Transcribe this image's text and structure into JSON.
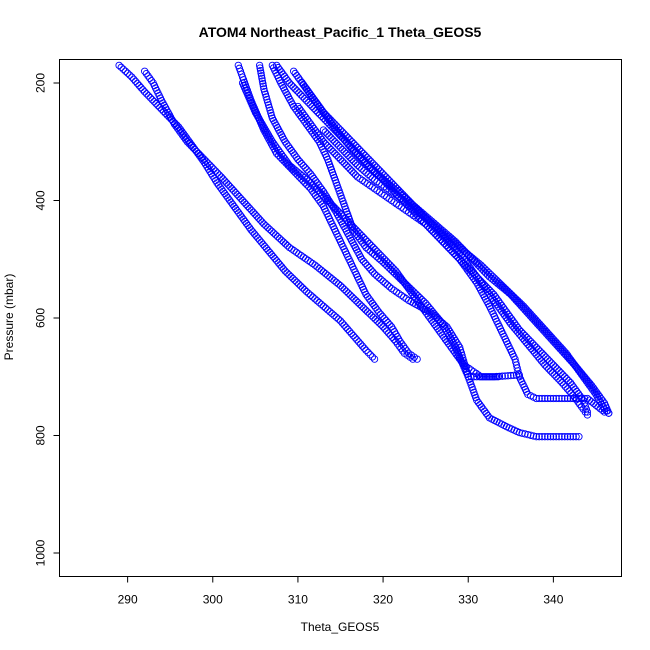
{
  "chart_data": {
    "type": "scatter",
    "title": "ATOM4 Northeast_Pacific_1 Theta_GEOS5",
    "xlabel": "Theta_GEOS5",
    "ylabel": "Pressure (mbar)",
    "xlim": [
      282,
      348
    ],
    "ylim": [
      1040,
      160
    ],
    "y_reversed": true,
    "grid": false,
    "legend": "none",
    "x_ticks": [
      290,
      300,
      310,
      320,
      330,
      340
    ],
    "y_ticks": [
      200,
      400,
      600,
      800,
      1000
    ],
    "marker": "open-circle",
    "color": "#0000ff",
    "series": [
      {
        "points": [
          [
            289.0,
            170
          ],
          [
            290.5,
            190
          ],
          [
            292.0,
            215
          ],
          [
            294.0,
            245
          ],
          [
            296.0,
            275
          ],
          [
            297.5,
            305
          ],
          [
            299.0,
            335
          ],
          [
            300.5,
            370
          ],
          [
            302.5,
            410
          ],
          [
            304.5,
            450
          ],
          [
            306.5,
            485
          ],
          [
            308.5,
            520
          ],
          [
            311.0,
            555
          ],
          [
            313.0,
            580
          ],
          [
            315.0,
            605
          ],
          [
            316.5,
            630
          ],
          [
            318.0,
            655
          ],
          [
            319.0,
            670
          ]
        ]
      },
      {
        "points": [
          [
            292.0,
            180
          ],
          [
            293.0,
            200
          ],
          [
            294.0,
            230
          ],
          [
            295.5,
            270
          ],
          [
            297.0,
            300
          ],
          [
            299.0,
            330
          ],
          [
            301.0,
            360
          ],
          [
            303.5,
            400
          ],
          [
            306.0,
            440
          ],
          [
            309.0,
            480
          ],
          [
            312.0,
            510
          ],
          [
            315.0,
            545
          ],
          [
            317.5,
            580
          ],
          [
            320.0,
            615
          ],
          [
            321.5,
            640
          ],
          [
            322.5,
            660
          ],
          [
            323.5,
            670
          ]
        ]
      },
      {
        "points": [
          [
            303.0,
            170
          ],
          [
            303.5,
            190
          ],
          [
            304.5,
            230
          ],
          [
            306.0,
            280
          ],
          [
            307.5,
            320
          ],
          [
            309.5,
            350
          ],
          [
            311.5,
            380
          ],
          [
            313.0,
            410
          ],
          [
            314.0,
            440
          ],
          [
            315.0,
            470
          ],
          [
            316.0,
            500
          ],
          [
            317.0,
            530
          ],
          [
            318.0,
            560
          ],
          [
            319.5,
            590
          ],
          [
            321.0,
            615
          ],
          [
            322.0,
            640
          ],
          [
            323.0,
            660
          ],
          [
            324.0,
            670
          ]
        ]
      },
      {
        "points": [
          [
            305.5,
            170
          ],
          [
            306.0,
            210
          ],
          [
            307.0,
            260
          ],
          [
            308.5,
            300
          ],
          [
            310.0,
            330
          ],
          [
            311.5,
            355
          ],
          [
            313.0,
            385
          ],
          [
            314.5,
            420
          ],
          [
            316.0,
            460
          ],
          [
            317.5,
            500
          ],
          [
            319.0,
            525
          ],
          [
            321.0,
            550
          ],
          [
            323.0,
            570
          ],
          [
            325.5,
            590
          ],
          [
            327.5,
            615
          ],
          [
            329.0,
            650
          ],
          [
            330.0,
            700
          ],
          [
            333.0,
            700
          ],
          [
            336.0,
            697
          ]
        ]
      },
      {
        "points": [
          [
            307.0,
            170
          ],
          [
            308.0,
            200
          ],
          [
            309.5,
            240
          ],
          [
            311.0,
            270
          ],
          [
            312.5,
            300
          ],
          [
            313.5,
            330
          ],
          [
            314.5,
            370
          ],
          [
            315.5,
            410
          ],
          [
            316.5,
            450
          ],
          [
            318.0,
            480
          ],
          [
            320.0,
            505
          ],
          [
            322.5,
            540
          ],
          [
            325.0,
            575
          ],
          [
            327.0,
            610
          ],
          [
            328.5,
            650
          ],
          [
            330.0,
            700
          ],
          [
            331.0,
            740
          ],
          [
            332.5,
            770
          ],
          [
            334.5,
            785
          ],
          [
            336.0,
            795
          ],
          [
            338.0,
            802
          ],
          [
            341.0,
            802
          ],
          [
            343.0,
            802
          ]
        ]
      },
      {
        "points": [
          [
            307.5,
            170
          ],
          [
            309.0,
            200
          ],
          [
            311.0,
            230
          ],
          [
            313.0,
            260
          ],
          [
            315.0,
            290
          ],
          [
            317.0,
            320
          ],
          [
            319.0,
            350
          ],
          [
            321.0,
            380
          ],
          [
            323.0,
            410
          ],
          [
            325.0,
            440
          ],
          [
            327.0,
            470
          ],
          [
            329.0,
            500
          ],
          [
            331.0,
            540
          ],
          [
            332.5,
            580
          ],
          [
            333.5,
            610
          ],
          [
            334.5,
            640
          ],
          [
            335.5,
            670
          ],
          [
            336.0,
            700
          ],
          [
            337.0,
            730
          ],
          [
            338.0,
            737
          ],
          [
            340.0,
            737
          ],
          [
            342.0,
            737
          ],
          [
            344.0,
            737
          ],
          [
            346.0,
            760
          ]
        ]
      },
      {
        "points": [
          [
            309.5,
            180
          ],
          [
            311.0,
            210
          ],
          [
            313.0,
            250
          ],
          [
            315.0,
            280
          ],
          [
            317.0,
            310
          ],
          [
            319.0,
            340
          ],
          [
            321.0,
            370
          ],
          [
            323.0,
            400
          ],
          [
            325.0,
            430
          ],
          [
            327.0,
            460
          ],
          [
            329.0,
            490
          ],
          [
            331.0,
            530
          ],
          [
            333.0,
            570
          ],
          [
            335.0,
            610
          ],
          [
            337.0,
            645
          ],
          [
            339.0,
            680
          ],
          [
            341.0,
            710
          ],
          [
            342.5,
            735
          ],
          [
            343.5,
            755
          ],
          [
            344.0,
            765
          ]
        ]
      },
      {
        "points": [
          [
            310.0,
            240
          ],
          [
            311.5,
            270
          ],
          [
            313.0,
            300
          ],
          [
            315.0,
            330
          ],
          [
            317.0,
            360
          ],
          [
            319.0,
            380
          ],
          [
            321.0,
            400
          ],
          [
            323.0,
            420
          ],
          [
            325.0,
            440
          ],
          [
            327.0,
            470
          ],
          [
            329.0,
            500
          ],
          [
            331.0,
            530
          ],
          [
            333.0,
            560
          ],
          [
            334.5,
            590
          ],
          [
            336.0,
            620
          ],
          [
            338.0,
            650
          ],
          [
            340.0,
            680
          ],
          [
            342.0,
            710
          ],
          [
            343.5,
            740
          ],
          [
            344.0,
            760
          ]
        ]
      },
      {
        "points": [
          [
            313.0,
            280
          ],
          [
            315.0,
            310
          ],
          [
            317.0,
            340
          ],
          [
            319.0,
            365
          ],
          [
            321.0,
            385
          ],
          [
            323.0,
            405
          ],
          [
            325.0,
            430
          ],
          [
            327.0,
            455
          ],
          [
            329.0,
            480
          ],
          [
            331.5,
            510
          ],
          [
            334.0,
            545
          ],
          [
            336.5,
            580
          ],
          [
            339.0,
            620
          ],
          [
            341.5,
            660
          ],
          [
            343.5,
            700
          ],
          [
            345.0,
            730
          ],
          [
            346.0,
            755
          ],
          [
            346.5,
            762
          ]
        ]
      },
      {
        "points": [
          [
            310.5,
            200
          ],
          [
            312.5,
            240
          ],
          [
            314.5,
            280
          ],
          [
            316.5,
            315
          ],
          [
            318.5,
            345
          ],
          [
            320.5,
            370
          ],
          [
            322.5,
            395
          ],
          [
            324.5,
            420
          ],
          [
            326.5,
            445
          ],
          [
            328.5,
            470
          ],
          [
            330.5,
            500
          ],
          [
            332.5,
            530
          ],
          [
            335.0,
            560
          ],
          [
            337.5,
            600
          ],
          [
            340.0,
            640
          ],
          [
            342.5,
            680
          ],
          [
            344.5,
            715
          ],
          [
            346.0,
            745
          ],
          [
            346.5,
            762
          ]
        ]
      },
      {
        "points": [
          [
            303.5,
            200
          ],
          [
            305.0,
            250
          ],
          [
            307.0,
            300
          ],
          [
            309.0,
            340
          ],
          [
            311.5,
            370
          ],
          [
            313.5,
            400
          ],
          [
            315.5,
            430
          ],
          [
            317.5,
            460
          ],
          [
            319.5,
            490
          ],
          [
            321.5,
            520
          ],
          [
            323.5,
            560
          ],
          [
            325.5,
            600
          ],
          [
            327.5,
            640
          ],
          [
            329.5,
            680
          ],
          [
            331.5,
            700
          ],
          [
            333.5,
            700
          ]
        ]
      }
    ]
  }
}
